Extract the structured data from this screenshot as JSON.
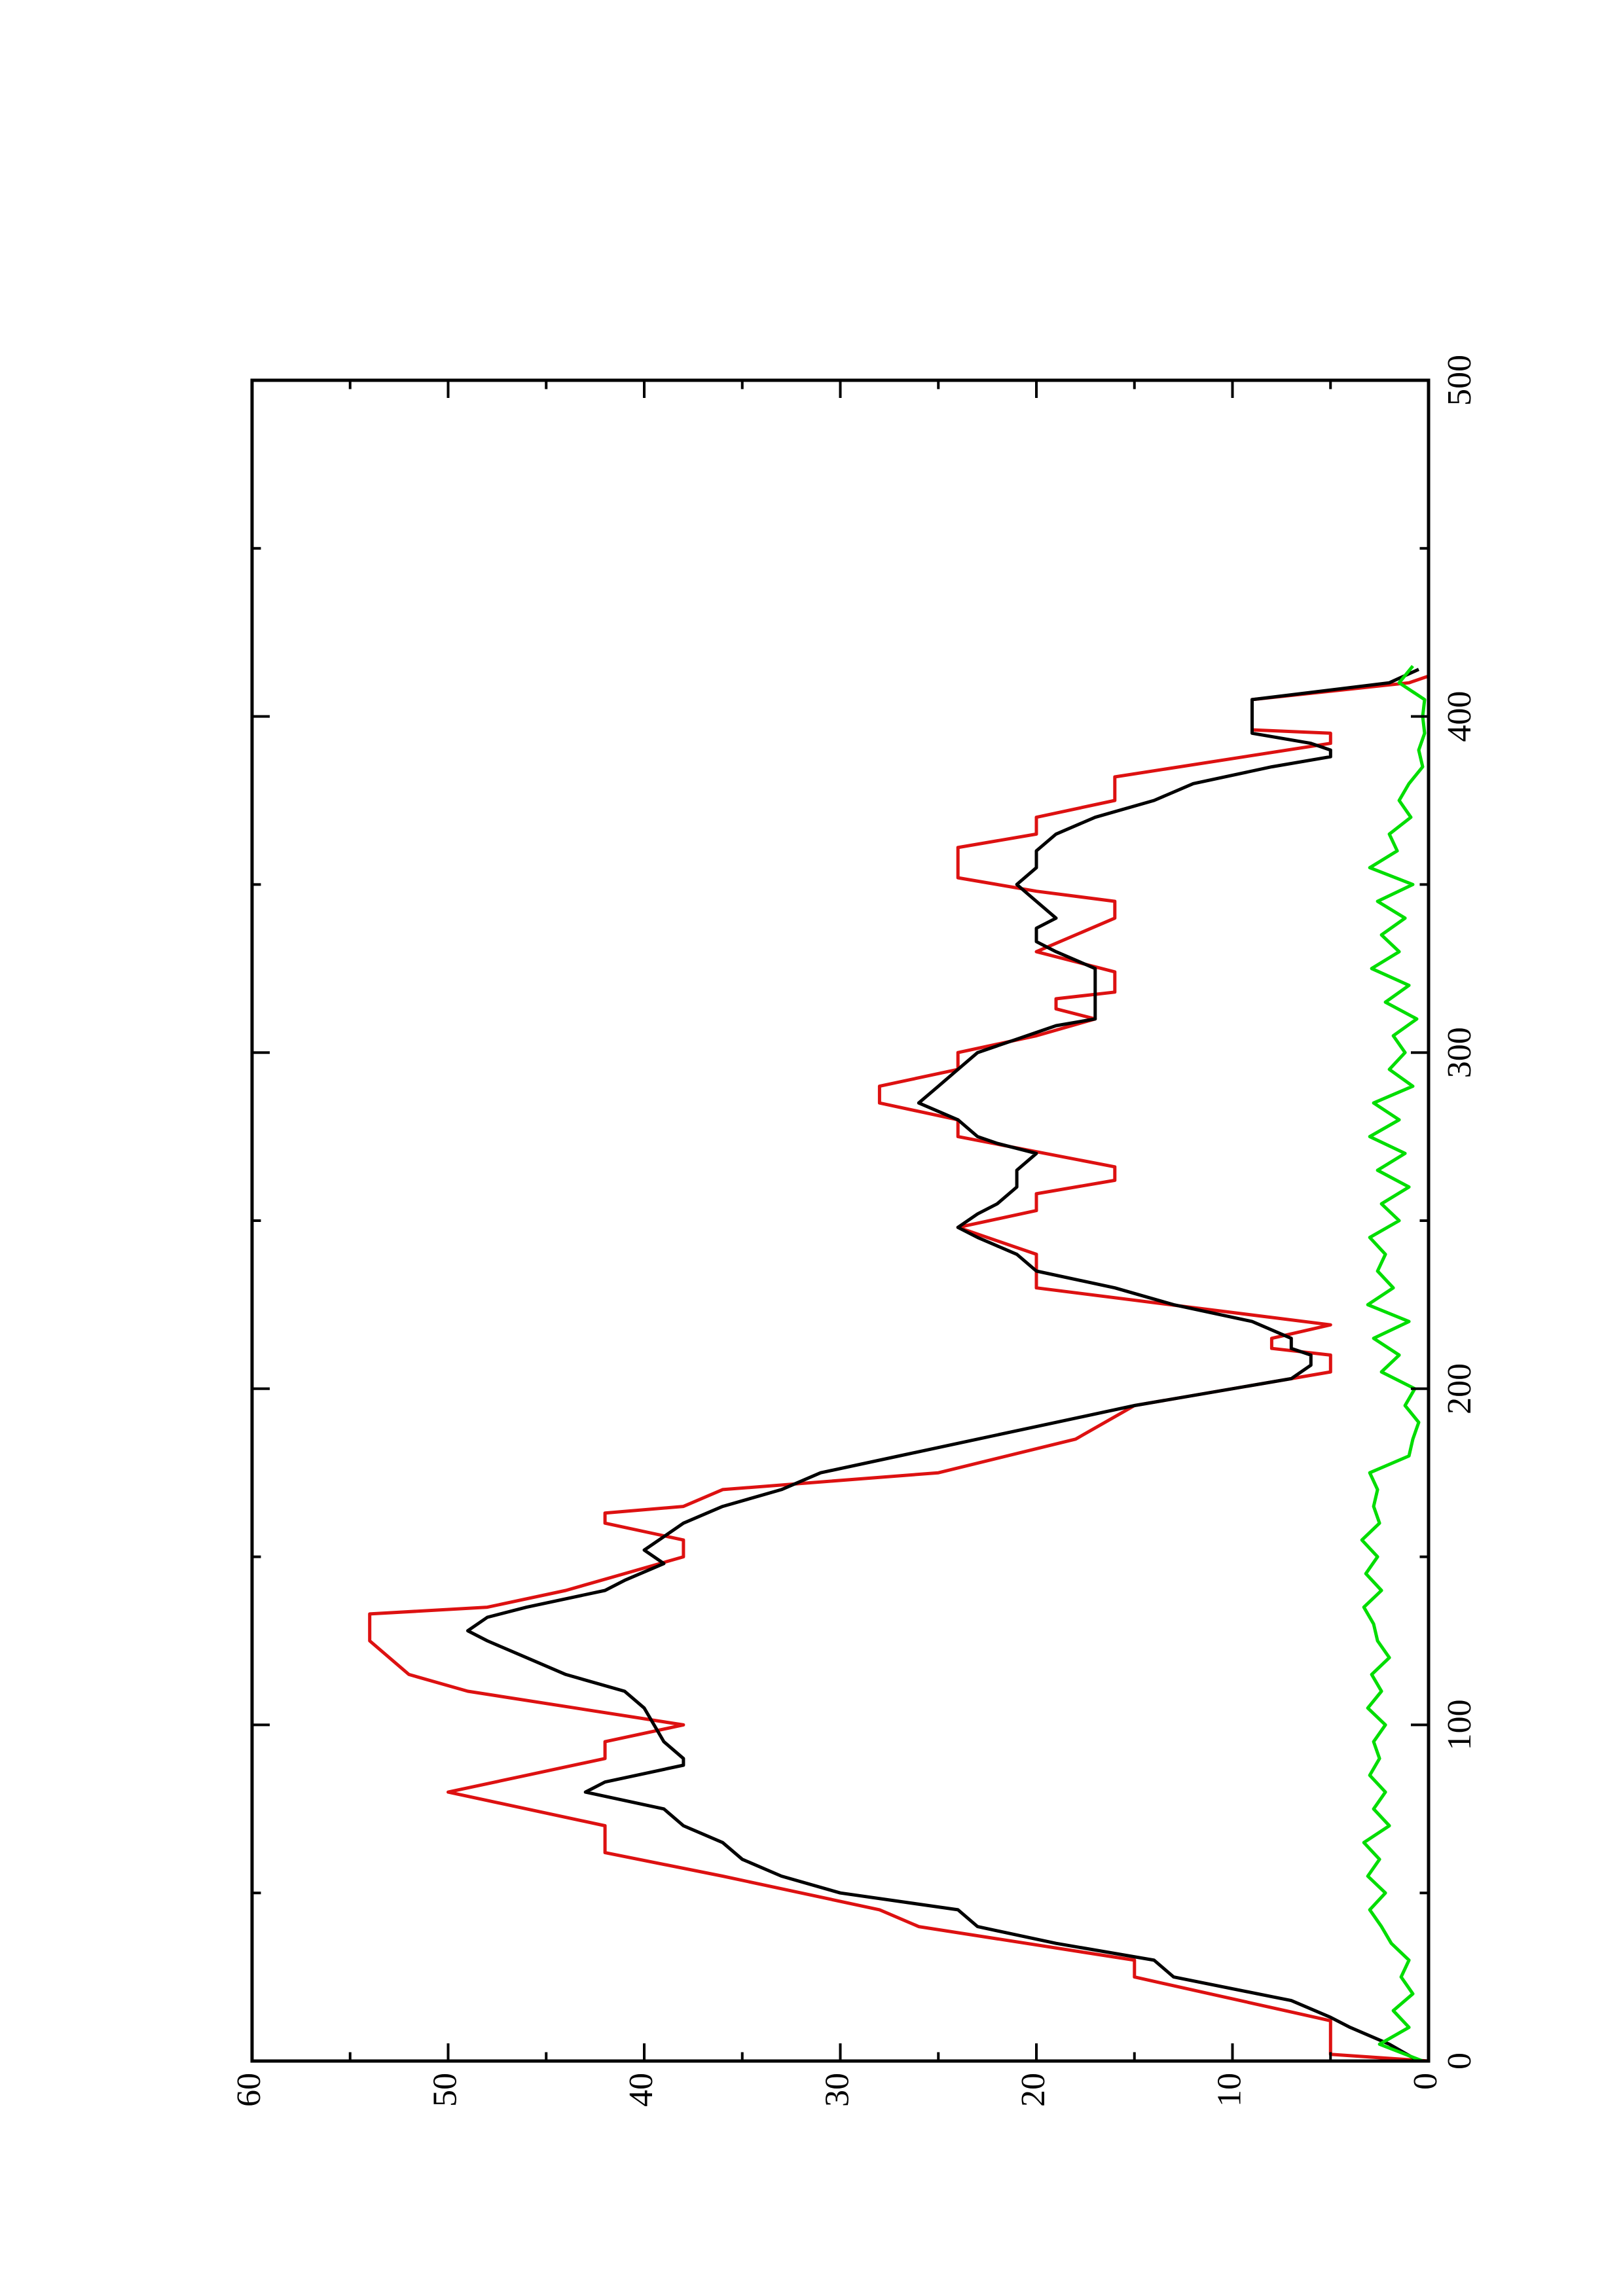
{
  "chart_data": {
    "type": "line",
    "xlim": [
      0,
      500
    ],
    "xticks": [
      0,
      100,
      200,
      300,
      400,
      500
    ],
    "xminorticks": [
      50,
      150,
      250,
      350,
      450
    ],
    "ylim": [
      0,
      60
    ],
    "yticks": [
      0,
      10,
      20,
      30,
      40,
      50,
      60
    ],
    "yminorticks": [
      5,
      15,
      25,
      35,
      45,
      55
    ],
    "rotated": true,
    "series": [
      {
        "color": "#dd1111",
        "x": [
          0,
          2,
          12,
          25,
          30,
          40,
          45,
          55,
          62,
          70,
          80,
          85,
          90,
          95,
          100,
          110,
          115,
          125,
          133,
          135,
          140,
          150,
          155,
          160,
          163,
          165,
          170,
          175,
          185,
          195,
          205,
          210,
          212,
          215,
          219,
          230,
          240,
          248,
          253,
          258,
          262,
          266,
          275,
          280,
          285,
          290,
          295,
          300,
          305,
          310,
          313,
          316,
          318,
          324,
          330,
          340,
          345,
          348,
          350,
          352,
          361,
          365,
          370,
          375,
          382,
          392,
          395,
          396,
          400,
          405,
          410,
          412
        ],
        "values": [
          0,
          5,
          5,
          15,
          15,
          26,
          28,
          36,
          42,
          42,
          50,
          46,
          42,
          42,
          38,
          49,
          52,
          54,
          54,
          48,
          44,
          38,
          38,
          42,
          42,
          38,
          36,
          25,
          18,
          15,
          5,
          5,
          8,
          8,
          5,
          20,
          20,
          24,
          20,
          20,
          16,
          16,
          24,
          24,
          28,
          28,
          24,
          24,
          20,
          17,
          19,
          19,
          16,
          16,
          20,
          16,
          16,
          20,
          22,
          24,
          24,
          20,
          20,
          16,
          16,
          5,
          5,
          9,
          9,
          9,
          1,
          0
        ]
      },
      {
        "color": "#000000",
        "x": [
          0,
          5,
          10,
          13,
          18,
          25,
          30,
          35,
          40,
          45,
          50,
          55,
          60,
          65,
          70,
          75,
          80,
          83,
          88,
          90,
          95,
          100,
          105,
          110,
          115,
          120,
          125,
          128,
          132,
          135,
          140,
          143,
          148,
          152,
          156,
          160,
          165,
          170,
          175,
          180,
          185,
          190,
          195,
          200,
          203,
          207,
          210,
          212,
          215,
          220,
          225,
          230,
          235,
          240,
          245,
          248,
          252,
          255,
          260,
          265,
          270,
          273,
          275,
          280,
          285,
          290,
          295,
          300,
          304,
          308,
          310,
          313,
          318,
          322,
          325,
          330,
          333,
          337,
          340,
          345,
          350,
          355,
          360,
          365,
          370,
          375,
          380,
          385,
          388,
          390,
          392,
          395,
          400,
          405,
          410,
          414
        ],
        "values": [
          0.5,
          2,
          4,
          5,
          7,
          13,
          14,
          19,
          23,
          24,
          30,
          33,
          35,
          36,
          38,
          39,
          43,
          42,
          38,
          38,
          39,
          39.5,
          40,
          41,
          44,
          46,
          48,
          49,
          48,
          46,
          42,
          41,
          39,
          40,
          39,
          38,
          36,
          33,
          31,
          27,
          23,
          19,
          15,
          10,
          7,
          6,
          6,
          7,
          7,
          9,
          13,
          16,
          20,
          21,
          23,
          24,
          23,
          22,
          21,
          21,
          20,
          22,
          23,
          24,
          26,
          25,
          24,
          23,
          21,
          19,
          17,
          17,
          17,
          17,
          17,
          19,
          20,
          20,
          19,
          20,
          21,
          20,
          20,
          19,
          17,
          14,
          12,
          8,
          5,
          5,
          6,
          9,
          9,
          9,
          2,
          0.5
        ]
      },
      {
        "color": "#00dd00",
        "x": [
          0,
          5,
          10,
          15,
          20,
          25,
          30,
          35,
          40,
          45,
          50,
          55,
          60,
          65,
          70,
          75,
          80,
          85,
          90,
          95,
          100,
          105,
          110,
          115,
          120,
          125,
          130,
          135,
          140,
          145,
          150,
          155,
          160,
          165,
          170,
          175,
          180,
          185,
          190,
          195,
          200,
          205,
          210,
          215,
          220,
          225,
          230,
          235,
          240,
          245,
          250,
          255,
          260,
          265,
          270,
          275,
          280,
          285,
          290,
          295,
          300,
          305,
          310,
          315,
          320,
          325,
          330,
          335,
          340,
          345,
          350,
          355,
          360,
          365,
          370,
          375,
          380,
          385,
          390,
          395,
          400,
          405,
          410,
          415
        ],
        "values": [
          0.3,
          2.5,
          1,
          1.8,
          0.8,
          1.4,
          1.0,
          1.9,
          2.4,
          3.0,
          2.2,
          3.1,
          2.5,
          3.3,
          2.0,
          2.8,
          2.2,
          3.0,
          2.5,
          2.8,
          2.2,
          3.1,
          2.4,
          2.9,
          2.0,
          2.6,
          2.8,
          3.3,
          2.4,
          3.2,
          2.6,
          3.4,
          2.5,
          2.8,
          2.6,
          3.0,
          1.0,
          0.8,
          0.5,
          1.2,
          0.7,
          2.4,
          1.5,
          2.8,
          1.0,
          3.1,
          1.8,
          2.6,
          2.2,
          3.0,
          1.5,
          2.4,
          1.0,
          2.6,
          1.2,
          3.0,
          1.5,
          2.8,
          0.8,
          2.0,
          1.2,
          1.8,
          0.6,
          2.2,
          1.0,
          2.9,
          1.5,
          2.4,
          1.2,
          2.6,
          0.8,
          3.0,
          1.6,
          2.0,
          0.9,
          1.5,
          1.0,
          0.3,
          0.5,
          0.2,
          0.3,
          0.2,
          1.5,
          0.8
        ]
      }
    ]
  }
}
